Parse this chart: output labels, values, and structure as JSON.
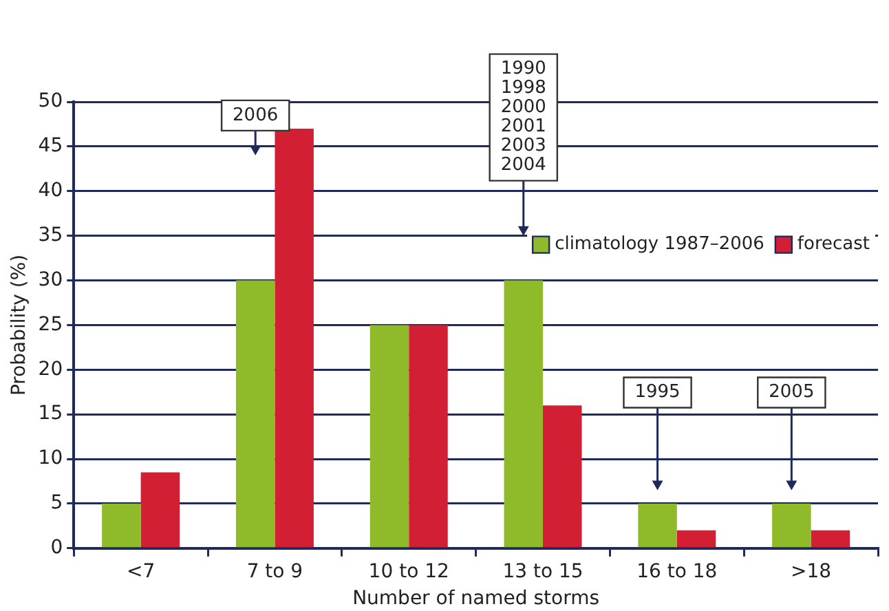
{
  "chart_data": {
    "type": "bar",
    "xlabel": "Number of named storms",
    "ylabel": "Probability (%)",
    "categories": [
      "<7",
      "7 to 9",
      "10 to 12",
      "13 to 15",
      "16 to 18",
      ">18"
    ],
    "series": [
      {
        "name": "climatology 1987–2006",
        "color": "#8fba2a",
        "values": [
          5,
          30,
          25,
          30,
          5,
          5
        ]
      },
      {
        "name": "forecast",
        "color": "#d21f33",
        "values": [
          8.5,
          47,
          25,
          16,
          2,
          2
        ]
      }
    ],
    "ylim": [
      0,
      50
    ],
    "yticks": [
      0,
      5,
      10,
      15,
      20,
      25,
      30,
      35,
      40,
      45,
      50
    ],
    "grid": "y",
    "legend": "top right",
    "annotations": [
      "2006",
      "1990\n1998\n2000\n2001\n2003\n2004",
      "1995",
      "2005"
    ]
  }
}
